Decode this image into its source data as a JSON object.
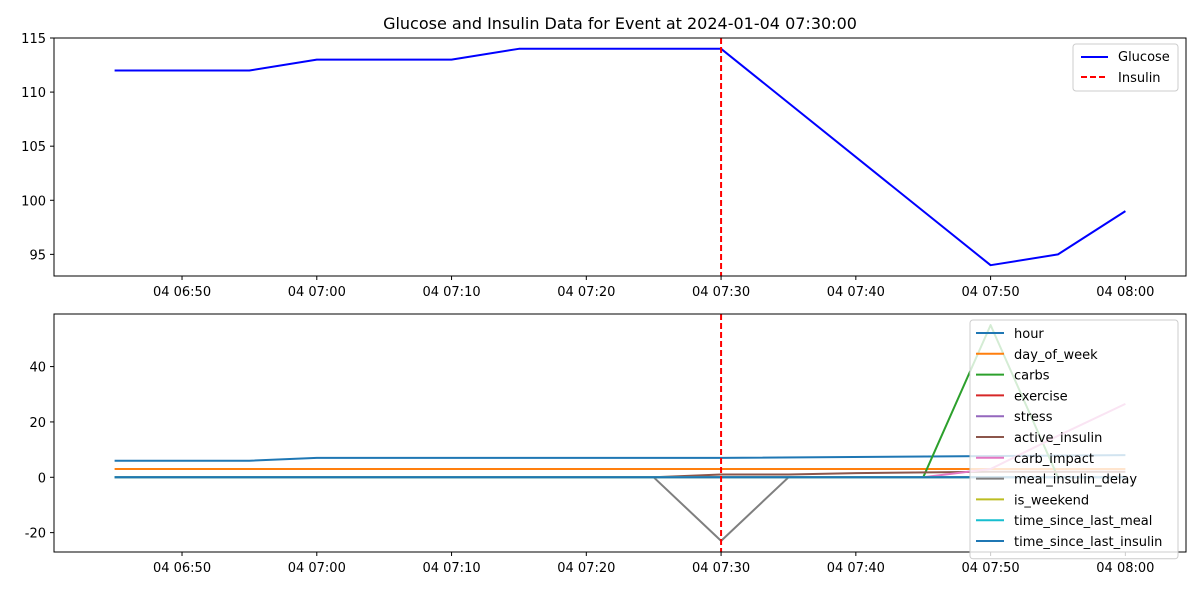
{
  "chart_data": [
    {
      "type": "line",
      "title": "Glucose and Insulin Data for Event at 2024-01-04 07:30:00",
      "xlabel": "",
      "ylabel": "",
      "x_ticks": [
        "04 06:50",
        "04 07:00",
        "04 07:10",
        "04 07:20",
        "04 07:30",
        "04 07:40",
        "04 07:50",
        "04 08:00"
      ],
      "x_tick_minutes": [
        -40,
        -30,
        -20,
        -10,
        0,
        10,
        20,
        30
      ],
      "x_range_minutes": [
        -49.5,
        34.5
      ],
      "y_ticks": [
        95,
        100,
        105,
        110,
        115
      ],
      "ylim": [
        93,
        115
      ],
      "legend_position": "upper right",
      "event_line": {
        "name": "Insulin",
        "x_minutes": 0,
        "color": "#ff0000",
        "style": "dashed"
      },
      "series": [
        {
          "name": "Glucose",
          "color": "#0000ff",
          "x_minutes": [
            -45,
            -40,
            -35,
            -30,
            -25,
            -20,
            -15,
            -10,
            -5,
            0,
            20,
            25,
            30
          ],
          "values": [
            112,
            112,
            112,
            113,
            113,
            113,
            114,
            114,
            114,
            114,
            94,
            95,
            99
          ]
        }
      ]
    },
    {
      "type": "line",
      "title": "",
      "xlabel": "",
      "ylabel": "",
      "x_ticks": [
        "04 06:50",
        "04 07:00",
        "04 07:10",
        "04 07:20",
        "04 07:30",
        "04 07:40",
        "04 07:50",
        "04 08:00"
      ],
      "x_tick_minutes": [
        -40,
        -30,
        -20,
        -10,
        0,
        10,
        20,
        30
      ],
      "x_range_minutes": [
        -49.5,
        34.5
      ],
      "y_ticks": [
        -20,
        0,
        20,
        40
      ],
      "ylim": [
        -27,
        59
      ],
      "legend_position": "upper right",
      "event_line": {
        "x_minutes": 0,
        "color": "#ff0000",
        "style": "dashed"
      },
      "series": [
        {
          "name": "hour",
          "color": "#1f77b4",
          "x_minutes": [
            -45,
            -35,
            -30,
            0,
            30
          ],
          "values": [
            6,
            6,
            7,
            7,
            8
          ]
        },
        {
          "name": "day_of_week",
          "color": "#ff7f0e",
          "x_minutes": [
            -45,
            30
          ],
          "values": [
            3,
            3
          ]
        },
        {
          "name": "carbs",
          "color": "#2ca02c",
          "x_minutes": [
            -45,
            15,
            20,
            25,
            30
          ],
          "values": [
            0,
            0,
            55,
            0,
            0
          ]
        },
        {
          "name": "exercise",
          "color": "#d62728",
          "x_minutes": [
            -45,
            30
          ],
          "values": [
            0,
            0
          ]
        },
        {
          "name": "stress",
          "color": "#9467bd",
          "x_minutes": [
            -45,
            30
          ],
          "values": [
            0,
            0
          ]
        },
        {
          "name": "active_insulin",
          "color": "#8c564b",
          "x_minutes": [
            -45,
            -5,
            0,
            5,
            10,
            20,
            30
          ],
          "values": [
            0,
            0,
            1,
            1,
            1.5,
            2,
            2
          ]
        },
        {
          "name": "carb_impact",
          "color": "#e377c2",
          "x_minutes": [
            -45,
            15,
            20,
            25,
            30
          ],
          "values": [
            0,
            0,
            3,
            15,
            26.5
          ]
        },
        {
          "name": "meal_insulin_delay",
          "color": "#7f7f7f",
          "x_minutes": [
            -45,
            -5,
            0,
            5,
            30
          ],
          "values": [
            0,
            0,
            -23,
            0,
            0
          ]
        },
        {
          "name": "is_weekend",
          "color": "#bcbd22",
          "x_minutes": [
            -45,
            30
          ],
          "values": [
            0,
            0
          ]
        },
        {
          "name": "time_since_last_meal",
          "color": "#17becf",
          "x_minutes": [
            -45,
            30
          ],
          "values": [
            0,
            0
          ]
        },
        {
          "name": "time_since_last_insulin",
          "color": "#1f77b4",
          "x_minutes": [
            -45,
            30
          ],
          "values": [
            0,
            0
          ]
        }
      ]
    }
  ]
}
